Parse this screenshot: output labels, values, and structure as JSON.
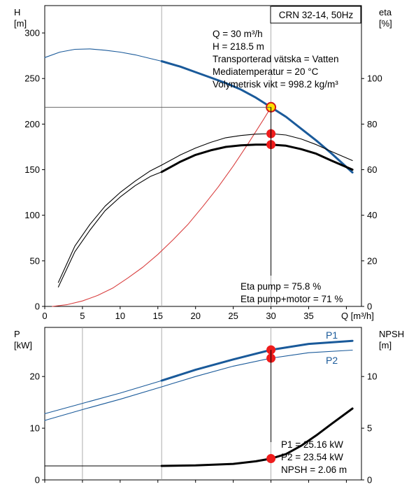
{
  "chart_data": [
    {
      "type": "line",
      "title": "CRN 32-14, 50Hz",
      "xlabel": "Q [m³/h]",
      "ylabel": "H [m]",
      "ylabel_right": "eta [%]",
      "ylabel_left_parts": [
        "H",
        "[m]"
      ],
      "ylabel_right_parts": [
        "eta",
        "[%]"
      ],
      "xlim": [
        0,
        42
      ],
      "ylim": [
        0,
        330
      ],
      "ylim_right": [
        0,
        132
      ],
      "xticks": [
        "0",
        "5",
        "10",
        "15",
        "20",
        "25",
        "30",
        "35",
        "Q [m³/h]"
      ],
      "yticks": [
        "0",
        "50",
        "100",
        "150",
        "200",
        "250",
        "300"
      ],
      "yticks_right": [
        "0",
        "20",
        "40",
        "60",
        "80",
        "100"
      ],
      "grid": true,
      "info_box": [
        "Q = 30 m³/h",
        "H = 218.5 m",
        "Transporterad vätska = Vatten",
        "Mediatemperatur = 20 °C",
        "Volymetrisk vikt = 998.2 kg/m³"
      ],
      "annotations": [
        "Eta pump = 75.8 %",
        "Eta pump+motor = 71 %"
      ],
      "duty_point": {
        "x": 30,
        "y": 218.5
      },
      "series": [
        {
          "color": "#1a5a9a",
          "axis": "left",
          "style": "thin",
          "x": [
            0,
            2,
            4,
            6,
            8,
            10,
            12,
            14,
            15.5
          ],
          "y": [
            273,
            279,
            282,
            282.5,
            281,
            279,
            276,
            272,
            269
          ]
        },
        {
          "color": "#1a5a9a",
          "axis": "left",
          "style": "thick",
          "x": [
            15.5,
            18,
            20,
            22,
            24,
            26,
            28,
            30,
            32,
            34,
            36,
            38,
            40.8
          ],
          "y": [
            269,
            263,
            257,
            251,
            245,
            238,
            229,
            218.5,
            208,
            195,
            182,
            168,
            147
          ]
        },
        {
          "color": "#d94040",
          "axis": "left",
          "style": "thin",
          "x": [
            1,
            3,
            5,
            7,
            9,
            11,
            13,
            15,
            17,
            19,
            21,
            23,
            25,
            27,
            29,
            30
          ],
          "y": [
            0,
            2,
            6,
            12,
            20,
            31,
            43,
            57,
            73,
            90,
            110,
            131,
            154,
            179,
            205,
            218.5
          ]
        },
        {
          "color": "#000000",
          "axis": "right",
          "style": "thin",
          "x": [
            1.8,
            4,
            6,
            8,
            10,
            12,
            14,
            15.5
          ],
          "y": [
            10.5,
            26.5,
            36,
            44,
            50,
            55,
            59.5,
            62
          ]
        },
        {
          "color": "#000000",
          "axis": "right",
          "style": "thin",
          "x": [
            15.5,
            18,
            20,
            22,
            24,
            26,
            28,
            30,
            32,
            34,
            36,
            38,
            40.8
          ],
          "y": [
            62,
            66.5,
            69.5,
            72,
            74,
            75,
            75.6,
            75.8,
            75.2,
            73.5,
            71,
            68,
            64
          ]
        },
        {
          "color": "#000000",
          "axis": "right",
          "style": "thin",
          "x": [
            1.8,
            4,
            6,
            8,
            10,
            12,
            14,
            15.5
          ],
          "y": [
            8.5,
            24,
            33.5,
            42,
            48,
            53,
            57,
            59
          ]
        },
        {
          "color": "#000000",
          "axis": "right",
          "style": "thick",
          "x": [
            15.5,
            18,
            20,
            22,
            24,
            26,
            28,
            30,
            32,
            34,
            36,
            38,
            40.8
          ],
          "y": [
            59,
            63.5,
            66.5,
            68.5,
            70,
            70.7,
            71,
            71,
            70.5,
            69,
            67,
            64,
            60
          ]
        }
      ],
      "markers": [
        {
          "x": 30,
          "y": 218.5,
          "axis": "left"
        },
        {
          "x": 30,
          "y": 75.8,
          "axis": "right"
        },
        {
          "x": 30,
          "y": 71,
          "axis": "right"
        }
      ]
    },
    {
      "type": "line",
      "xlabel": "",
      "ylabel": "P [kW]",
      "ylabel_right": "NPSH [m]",
      "ylabel_left_parts": [
        "P",
        "[kW]"
      ],
      "ylabel_right_parts": [
        "NPSH",
        "[m]"
      ],
      "xlim": [
        0,
        42
      ],
      "ylim": [
        0,
        29.5
      ],
      "ylim_right": [
        0,
        14.75
      ],
      "yticks": [
        "0",
        "10",
        "20"
      ],
      "yticks_right": [
        "0",
        "5",
        "10"
      ],
      "grid": true,
      "annotations": [
        "P1 = 25.16 kW",
        "P2 = 23.54 kW",
        "NPSH = 2.06 m"
      ],
      "series": [
        {
          "name": "P1",
          "color": "#1a5a9a",
          "axis": "left",
          "style": "thin",
          "x": [
            0,
            5,
            10,
            15.5
          ],
          "y": [
            12.8,
            14.8,
            16.8,
            19.2
          ]
        },
        {
          "name": "P1",
          "color": "#1a5a9a",
          "axis": "left",
          "style": "thick",
          "x": [
            15.5,
            20,
            25,
            30,
            35,
            40.8
          ],
          "y": [
            19.2,
            21.3,
            23.3,
            25.16,
            26.3,
            26.9
          ]
        },
        {
          "color": "#1a5a9a",
          "axis": "left",
          "style": "thin",
          "x": [
            0,
            5,
            10,
            15.5,
            20,
            25,
            30,
            35,
            40.8
          ],
          "y": [
            11.5,
            13.6,
            15.6,
            18.0,
            20.0,
            22.0,
            23.54,
            24.6,
            25.1
          ]
        },
        {
          "color": "#000000",
          "axis": "right",
          "style": "thin",
          "x": [
            0,
            15.5
          ],
          "y": [
            1.35,
            1.35
          ]
        },
        {
          "color": "#000000",
          "axis": "right",
          "style": "thick",
          "x": [
            15.5,
            20,
            25,
            28,
            30,
            32,
            34,
            36,
            38,
            40.8
          ],
          "y": [
            1.35,
            1.4,
            1.55,
            1.8,
            2.06,
            2.5,
            3.3,
            4.3,
            5.4,
            6.9
          ]
        }
      ],
      "labels": {
        "p1": "P1",
        "p2": "P2"
      },
      "markers": [
        {
          "x": 30,
          "y": 25.16,
          "axis": "left"
        },
        {
          "x": 30,
          "y": 23.54,
          "axis": "left"
        },
        {
          "x": 30,
          "y": 2.06,
          "axis": "right"
        }
      ]
    }
  ]
}
